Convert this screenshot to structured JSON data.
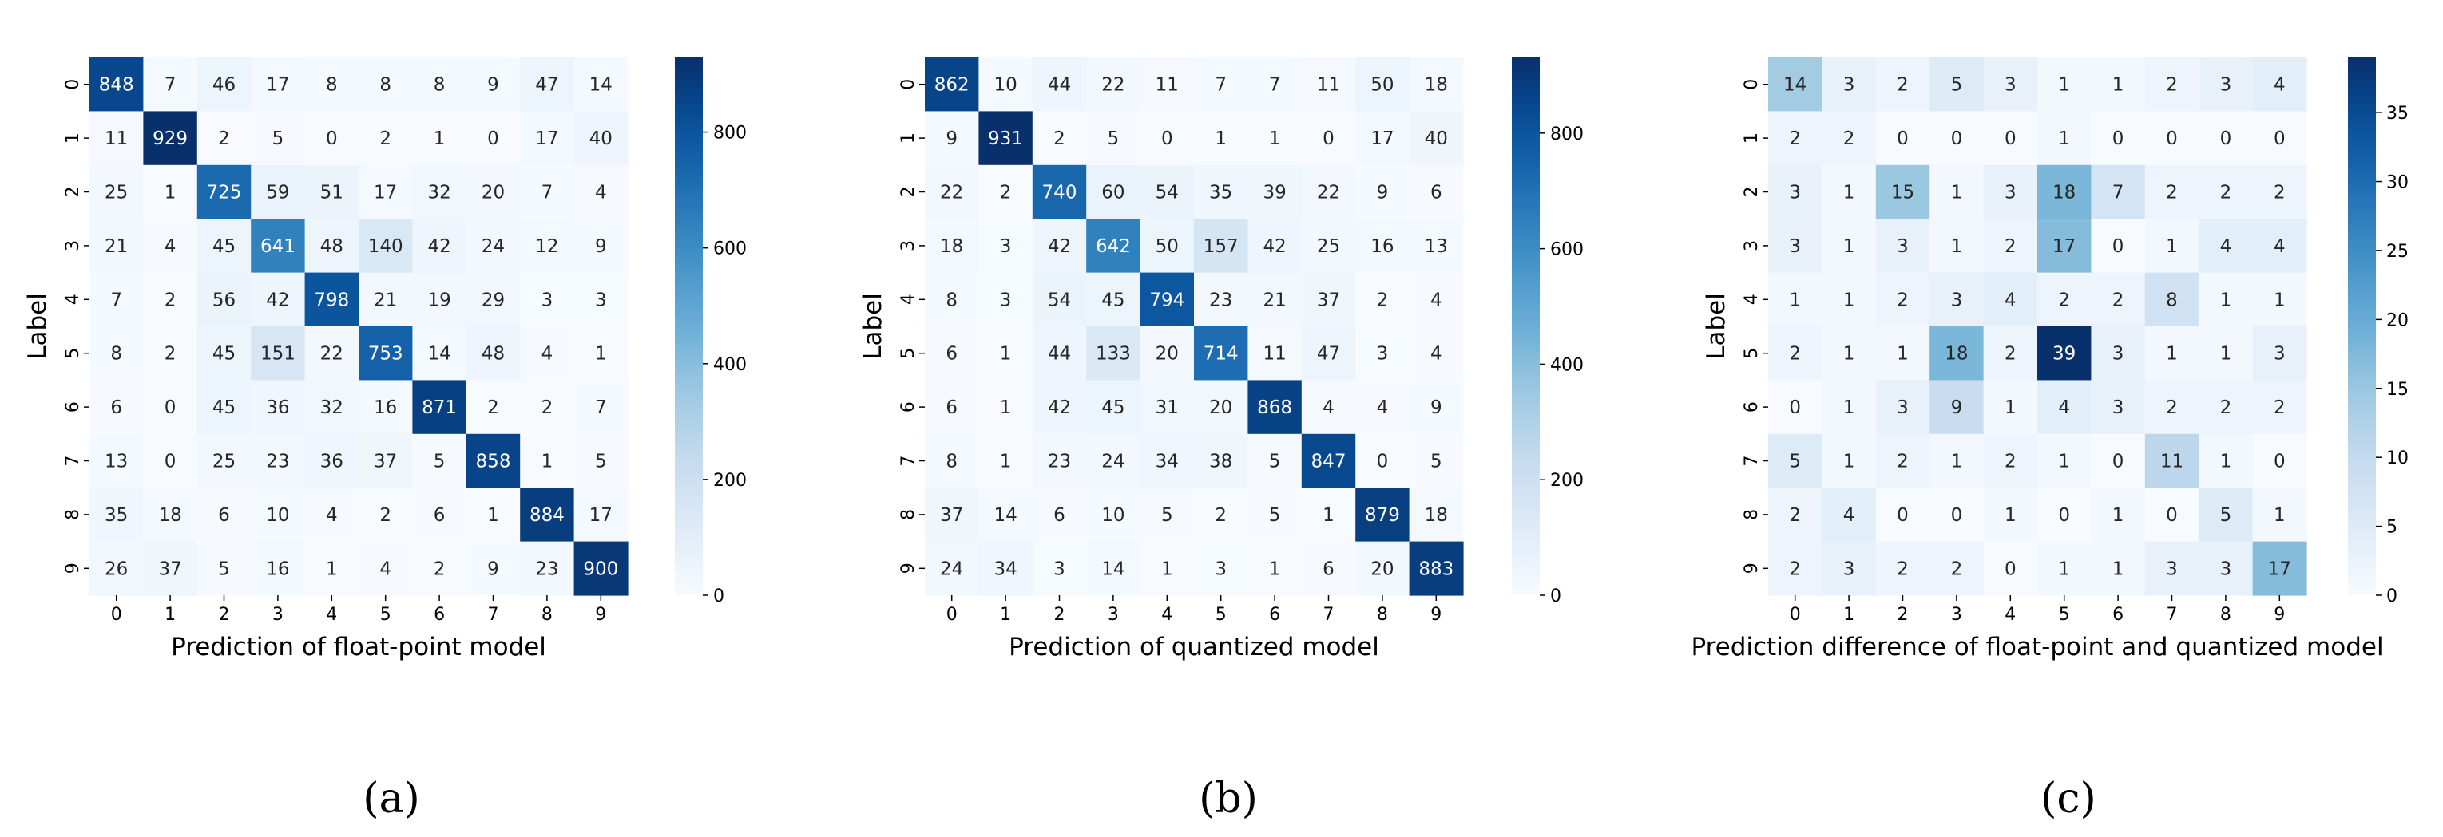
{
  "chart_data": [
    {
      "type": "heatmap",
      "panel_label": "(a)",
      "xlabel": "Prediction of float-point model",
      "ylabel": "Label",
      "x_ticks": [
        "0",
        "1",
        "2",
        "3",
        "4",
        "5",
        "6",
        "7",
        "8",
        "9"
      ],
      "y_ticks": [
        "0",
        "1",
        "2",
        "3",
        "4",
        "5",
        "6",
        "7",
        "8",
        "9"
      ],
      "colormap": "Blues",
      "colorbar": {
        "min": 0,
        "max": 929,
        "ticks": [
          0,
          200,
          400,
          600,
          800
        ]
      },
      "values": [
        [
          848,
          7,
          46,
          17,
          8,
          8,
          8,
          9,
          47,
          14
        ],
        [
          11,
          929,
          2,
          5,
          0,
          2,
          1,
          0,
          17,
          40
        ],
        [
          25,
          1,
          725,
          59,
          51,
          17,
          32,
          20,
          7,
          4
        ],
        [
          21,
          4,
          45,
          641,
          48,
          140,
          42,
          24,
          12,
          9
        ],
        [
          7,
          2,
          56,
          42,
          798,
          21,
          19,
          29,
          3,
          3
        ],
        [
          8,
          2,
          45,
          151,
          22,
          753,
          14,
          48,
          4,
          1
        ],
        [
          6,
          0,
          45,
          36,
          32,
          16,
          871,
          2,
          2,
          7
        ],
        [
          13,
          0,
          25,
          23,
          36,
          37,
          5,
          858,
          1,
          5
        ],
        [
          35,
          18,
          6,
          10,
          4,
          2,
          6,
          1,
          884,
          17
        ],
        [
          26,
          37,
          5,
          16,
          1,
          4,
          2,
          9,
          23,
          900
        ]
      ]
    },
    {
      "type": "heatmap",
      "panel_label": "(b)",
      "xlabel": "Prediction of quantized model",
      "ylabel": "Label",
      "x_ticks": [
        "0",
        "1",
        "2",
        "3",
        "4",
        "5",
        "6",
        "7",
        "8",
        "9"
      ],
      "y_ticks": [
        "0",
        "1",
        "2",
        "3",
        "4",
        "5",
        "6",
        "7",
        "8",
        "9"
      ],
      "colormap": "Blues",
      "colorbar": {
        "min": 0,
        "max": 931,
        "ticks": [
          0,
          200,
          400,
          600,
          800
        ]
      },
      "values": [
        [
          862,
          10,
          44,
          22,
          11,
          7,
          7,
          11,
          50,
          18
        ],
        [
          9,
          931,
          2,
          5,
          0,
          1,
          1,
          0,
          17,
          40
        ],
        [
          22,
          2,
          740,
          60,
          54,
          35,
          39,
          22,
          9,
          6
        ],
        [
          18,
          3,
          42,
          642,
          50,
          157,
          42,
          25,
          16,
          13
        ],
        [
          8,
          3,
          54,
          45,
          794,
          23,
          21,
          37,
          2,
          4
        ],
        [
          6,
          1,
          44,
          133,
          20,
          714,
          11,
          47,
          3,
          4
        ],
        [
          6,
          1,
          42,
          45,
          31,
          20,
          868,
          4,
          4,
          9
        ],
        [
          8,
          1,
          23,
          24,
          34,
          38,
          5,
          847,
          0,
          5
        ],
        [
          37,
          14,
          6,
          10,
          5,
          2,
          5,
          1,
          879,
          18
        ],
        [
          24,
          34,
          3,
          14,
          1,
          3,
          1,
          6,
          20,
          883
        ]
      ]
    },
    {
      "type": "heatmap",
      "panel_label": "(c)",
      "xlabel": "Prediction difference of float-point and quantized model",
      "ylabel": "Label",
      "x_ticks": [
        "0",
        "1",
        "2",
        "3",
        "4",
        "5",
        "6",
        "7",
        "8",
        "9"
      ],
      "y_ticks": [
        "0",
        "1",
        "2",
        "3",
        "4",
        "5",
        "6",
        "7",
        "8",
        "9"
      ],
      "colormap": "Blues",
      "colorbar": {
        "min": 0,
        "max": 39,
        "ticks": [
          0,
          5,
          10,
          15,
          20,
          25,
          30,
          35
        ]
      },
      "values": [
        [
          14,
          3,
          2,
          5,
          3,
          1,
          1,
          2,
          3,
          4
        ],
        [
          2,
          2,
          0,
          0,
          0,
          1,
          0,
          0,
          0,
          0
        ],
        [
          3,
          1,
          15,
          1,
          3,
          18,
          7,
          2,
          2,
          2
        ],
        [
          3,
          1,
          3,
          1,
          2,
          17,
          0,
          1,
          4,
          4
        ],
        [
          1,
          1,
          2,
          3,
          4,
          2,
          2,
          8,
          1,
          1
        ],
        [
          2,
          1,
          1,
          18,
          2,
          39,
          3,
          1,
          1,
          3
        ],
        [
          0,
          1,
          3,
          9,
          1,
          4,
          3,
          2,
          2,
          2
        ],
        [
          5,
          1,
          2,
          1,
          2,
          1,
          0,
          11,
          1,
          0
        ],
        [
          2,
          4,
          0,
          0,
          1,
          0,
          1,
          0,
          5,
          1
        ],
        [
          2,
          3,
          2,
          2,
          0,
          1,
          1,
          3,
          3,
          17
        ]
      ]
    }
  ]
}
